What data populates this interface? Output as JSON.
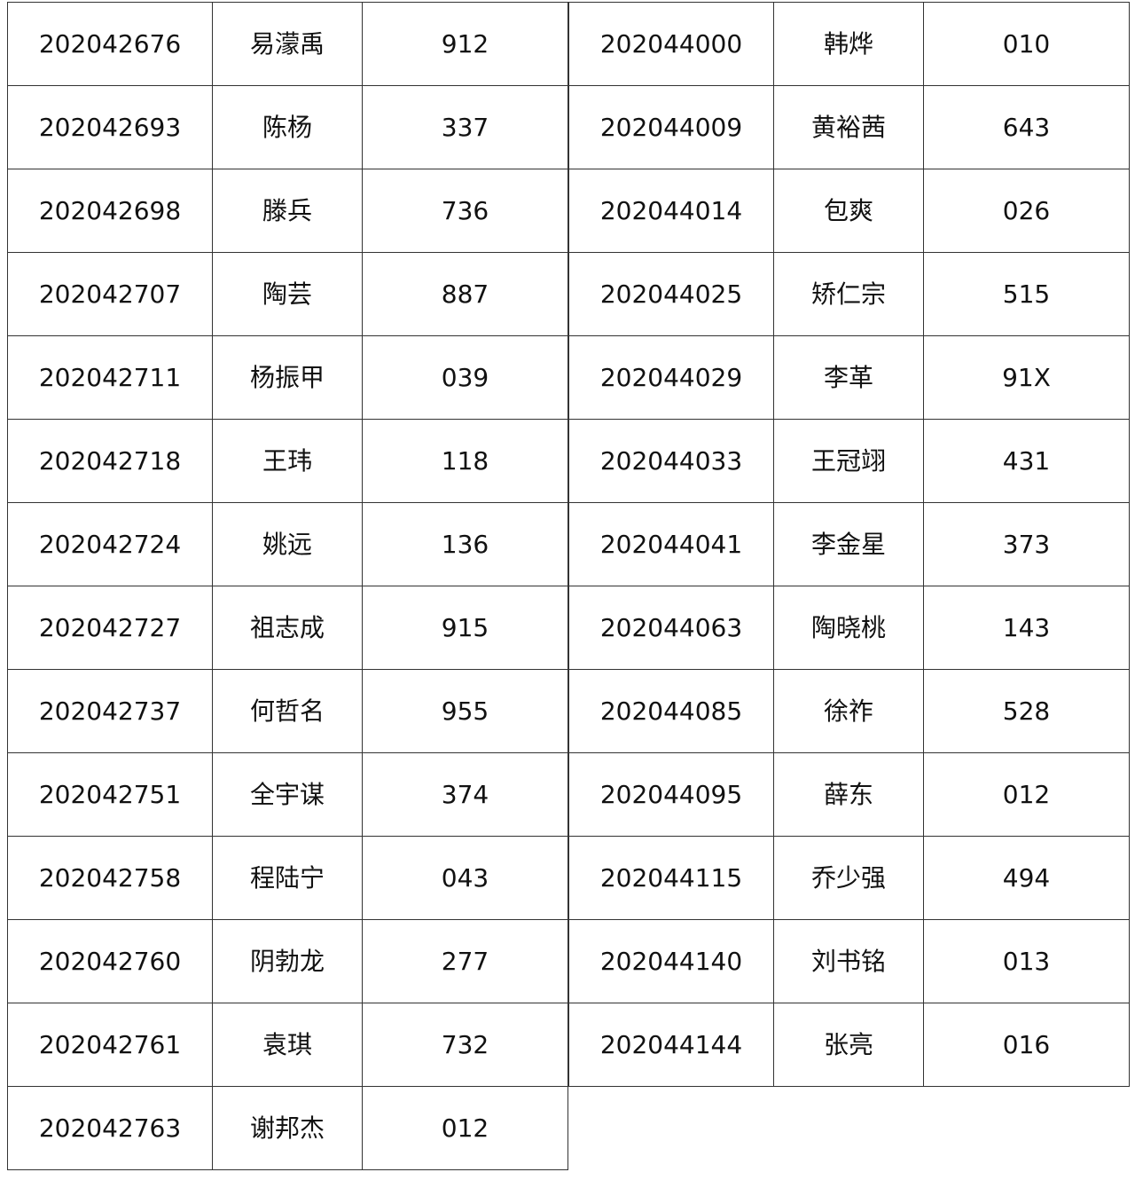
{
  "tables": [
    {
      "rows": [
        {
          "id": "202042676",
          "name": "易濛禹",
          "code": "912"
        },
        {
          "id": "202042693",
          "name": "陈杨",
          "code": "337"
        },
        {
          "id": "202042698",
          "name": "滕兵",
          "code": "736"
        },
        {
          "id": "202042707",
          "name": "陶芸",
          "code": "887"
        },
        {
          "id": "202042711",
          "name": "杨振甲",
          "code": "039"
        },
        {
          "id": "202042718",
          "name": "王玮",
          "code": "118"
        },
        {
          "id": "202042724",
          "name": "姚远",
          "code": "136"
        },
        {
          "id": "202042727",
          "name": "祖志成",
          "code": "915"
        },
        {
          "id": "202042737",
          "name": "何哲名",
          "code": "955"
        },
        {
          "id": "202042751",
          "name": "全宇谋",
          "code": "374"
        },
        {
          "id": "202042758",
          "name": "程陆宁",
          "code": "043"
        },
        {
          "id": "202042760",
          "name": "阴勃龙",
          "code": "277"
        },
        {
          "id": "202042761",
          "name": "袁琪",
          "code": "732"
        },
        {
          "id": "202042763",
          "name": "谢邦杰",
          "code": "012"
        }
      ]
    },
    {
      "rows": [
        {
          "id": "202044000",
          "name": "韩烨",
          "code": "010"
        },
        {
          "id": "202044009",
          "name": "黄裕茜",
          "code": "643"
        },
        {
          "id": "202044014",
          "name": "包爽",
          "code": "026"
        },
        {
          "id": "202044025",
          "name": "矫仁宗",
          "code": "515"
        },
        {
          "id": "202044029",
          "name": "李革",
          "code": "91X"
        },
        {
          "id": "202044033",
          "name": "王冠翊",
          "code": "431"
        },
        {
          "id": "202044041",
          "name": "李金星",
          "code": "373"
        },
        {
          "id": "202044063",
          "name": "陶晓桃",
          "code": "143"
        },
        {
          "id": "202044085",
          "name": "徐祚",
          "code": "528"
        },
        {
          "id": "202044095",
          "name": "薛东",
          "code": "012"
        },
        {
          "id": "202044115",
          "name": "乔少强",
          "code": "494"
        },
        {
          "id": "202044140",
          "name": "刘书铭",
          "code": "013"
        },
        {
          "id": "202044144",
          "name": "张亮",
          "code": "016"
        }
      ]
    }
  ]
}
